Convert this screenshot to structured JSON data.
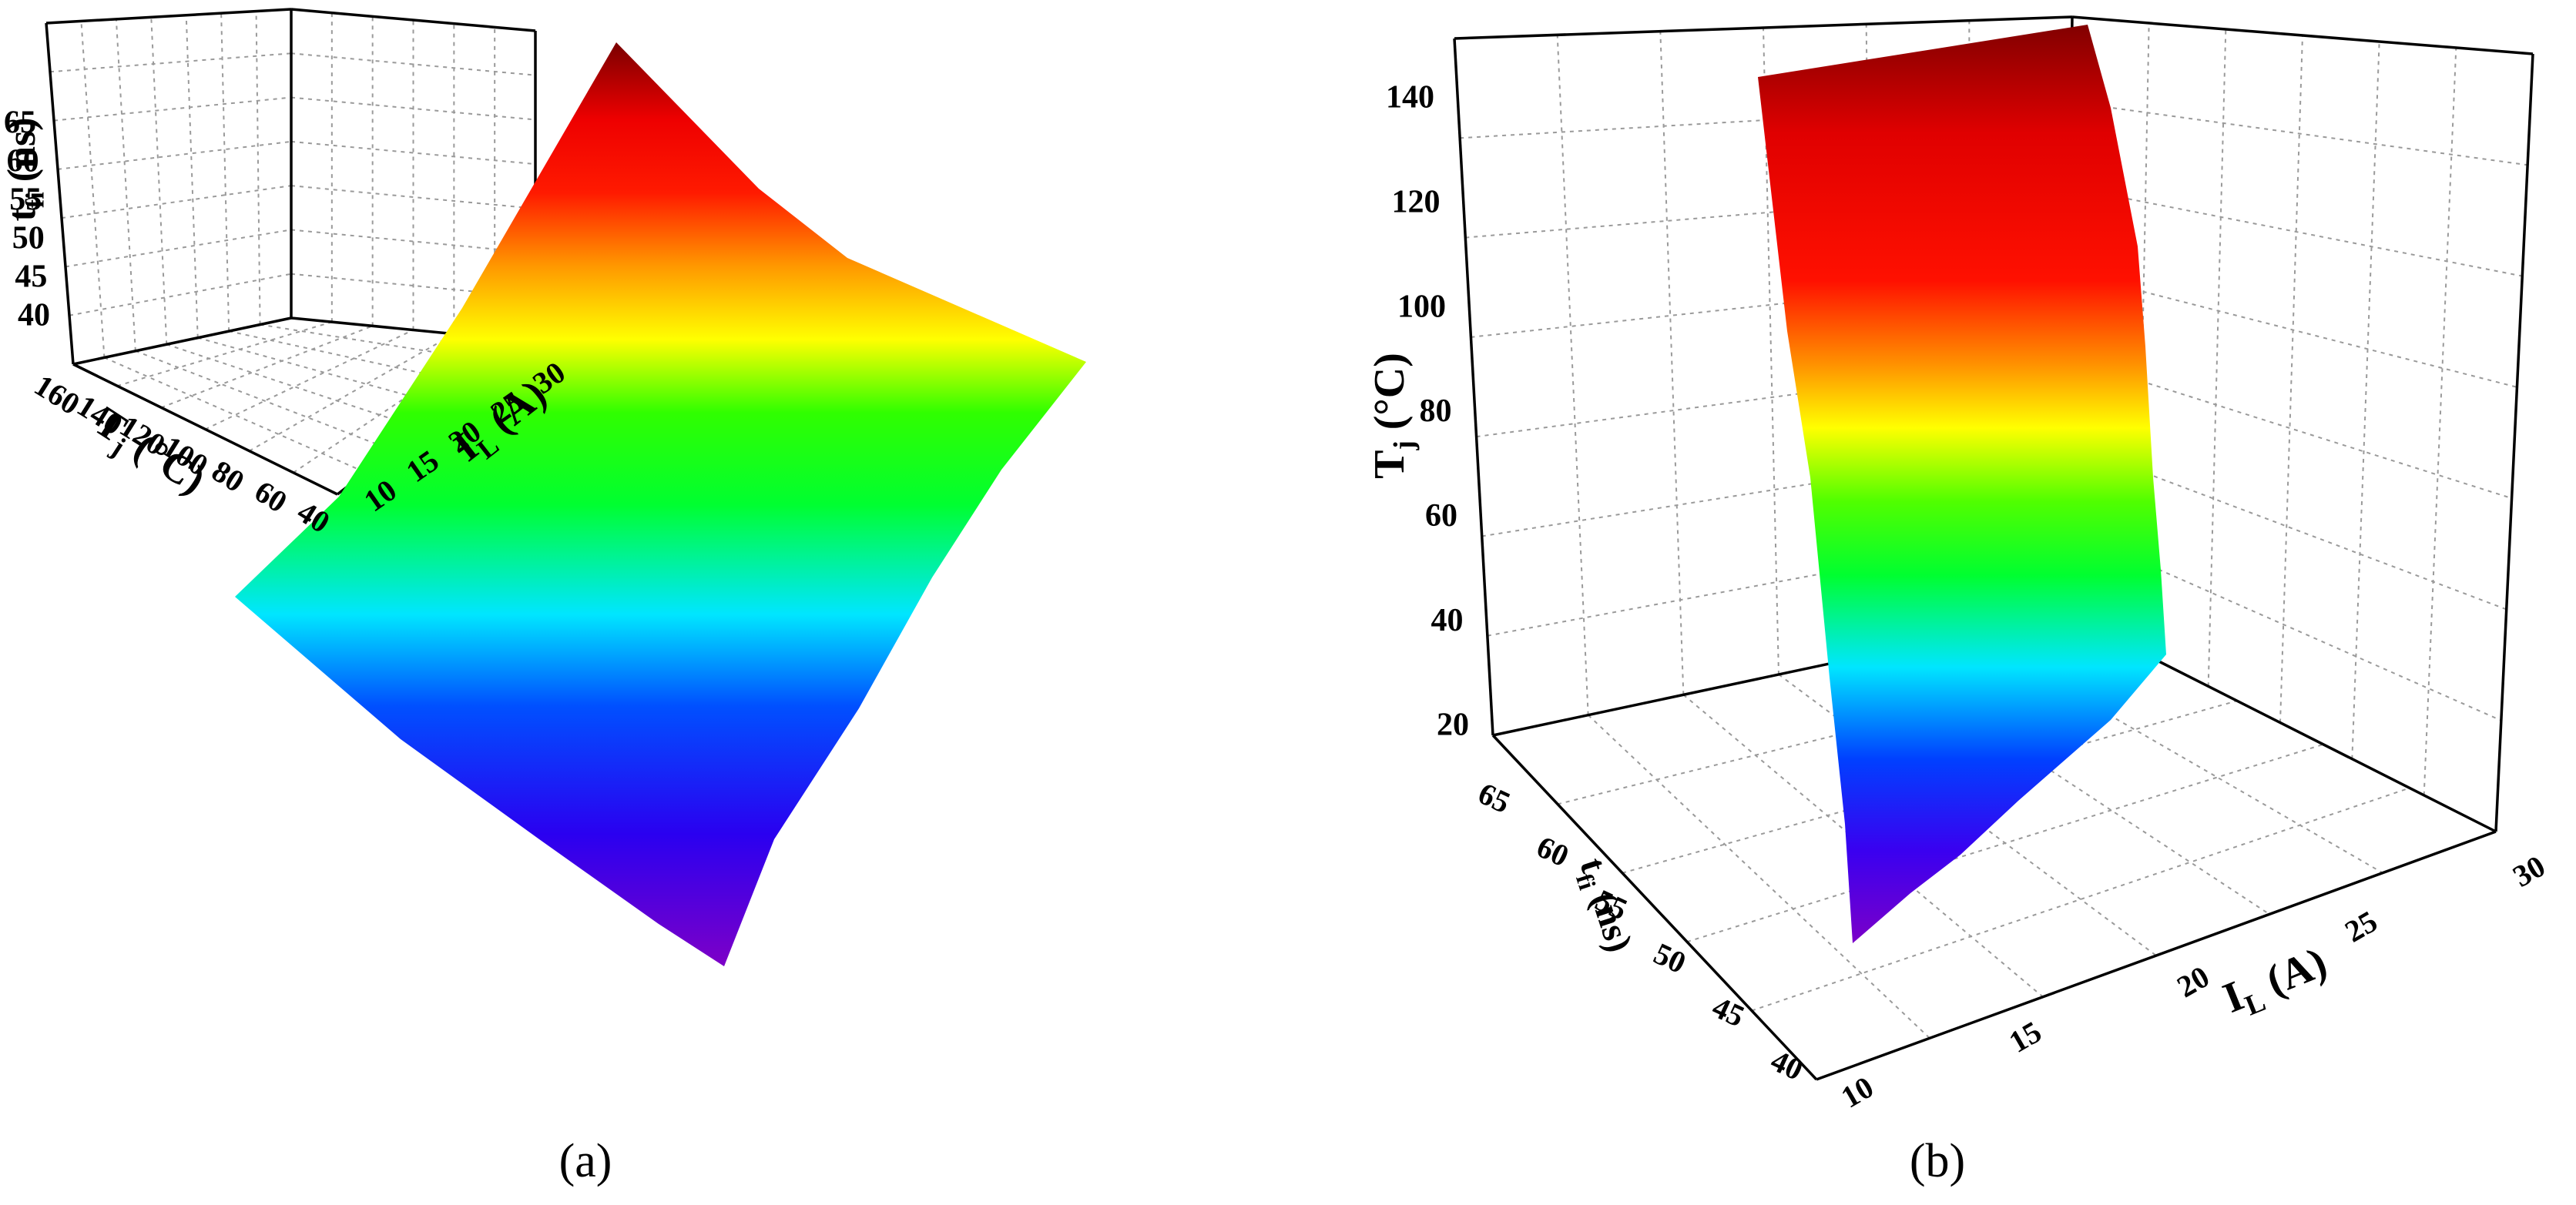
{
  "chart_data": [
    {
      "panel": "a",
      "type": "surface3d",
      "panel_label": "(a)",
      "xlabel": {
        "main": "T",
        "sub": "j",
        "rest": " (°C)"
      },
      "ylabel": {
        "main": "I",
        "sub": "L",
        "rest": " (A)"
      },
      "zlabel": {
        "main": "t",
        "sub": "fi",
        "rest": " (ns)"
      },
      "xlim": [
        20,
        160
      ],
      "ylim": [
        5,
        32
      ],
      "zlim": [
        40,
        68
      ],
      "xticks": [
        "40",
        "60",
        "80",
        "100",
        "120",
        "140",
        "160"
      ],
      "yticks": [
        "10",
        "15",
        "20",
        "25",
        "30"
      ],
      "zticks": [
        "40",
        "45",
        "50",
        "55",
        "60",
        "65"
      ],
      "corners": [
        {
          "Tj": 20,
          "IL": 10,
          "tfi": 40.2
        },
        {
          "Tj": 20,
          "IL": 30,
          "tfi": 55.5
        },
        {
          "Tj": 150,
          "IL": 30,
          "tfi": 67.5
        },
        {
          "Tj": 150,
          "IL": 10,
          "tfi": 48.7
        }
      ],
      "colormap": "rainbow",
      "grid": true
    },
    {
      "panel": "b",
      "type": "surface3d",
      "panel_label": "(b)",
      "xlabel": {
        "main": "t",
        "sub": "fi",
        "rest": " (ns)"
      },
      "ylabel": {
        "main": "I",
        "sub": "L",
        "rest": " (A)"
      },
      "zlabel": {
        "main": "T",
        "sub": "j",
        "rest": " (°C)"
      },
      "xlim": [
        38,
        68
      ],
      "ylim": [
        5,
        32
      ],
      "zlim": [
        20,
        150
      ],
      "xticks": [
        "40",
        "45",
        "50",
        "55",
        "60",
        "65"
      ],
      "yticks": [
        "10",
        "15",
        "20",
        "25",
        "30"
      ],
      "zticks": [
        "20",
        "40",
        "60",
        "80",
        "100",
        "120",
        "140"
      ],
      "corners": [
        {
          "tfi": 40.2,
          "IL": 10,
          "Tj": 20
        },
        {
          "tfi": 55.5,
          "IL": 30,
          "Tj": 20
        },
        {
          "tfi": 67.5,
          "IL": 30,
          "Tj": 150
        },
        {
          "tfi": 48.7,
          "IL": 10,
          "Tj": 150
        }
      ],
      "colormap": "rainbow",
      "grid": true
    }
  ]
}
